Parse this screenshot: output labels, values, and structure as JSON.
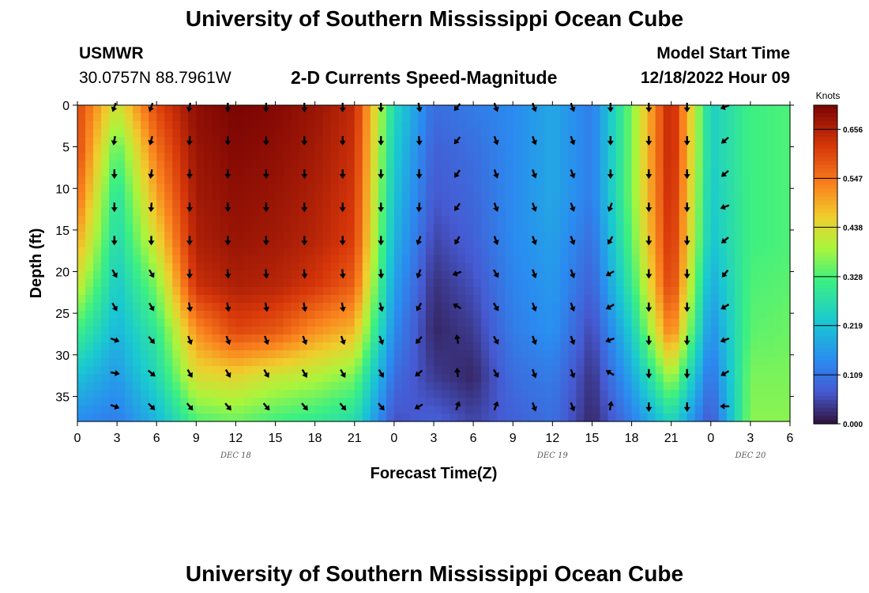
{
  "page_title": "University of Southern Mississippi Ocean Cube",
  "station": {
    "name": "USMWR",
    "coords": "30.0757N  88.7961W"
  },
  "plot_title": "2-D Currents Speed-Magnitude",
  "model_start": {
    "label": "Model Start Time",
    "value": "12/18/2022 Hour 09"
  },
  "footer_title": "University of Southern Mississippi Ocean Cube",
  "chart_data": {
    "type": "heatmap",
    "title": "2-D Currents Speed-Magnitude",
    "xlabel": "Forecast Time(Z)",
    "ylabel": "Depth (ft)",
    "x_ticks": [
      "0",
      "3",
      "6",
      "9",
      "12",
      "15",
      "18",
      "21",
      "0",
      "3",
      "6",
      "9",
      "12",
      "15",
      "18",
      "21",
      "0",
      "3",
      "6"
    ],
    "x_range_hours": [
      0,
      54
    ],
    "day_labels": [
      {
        "text": "DEC 18",
        "hour": 12
      },
      {
        "text": "DEC 19",
        "hour": 36
      },
      {
        "text": "DEC 20",
        "hour": 51
      }
    ],
    "y_ticks": [
      "0",
      "5",
      "10",
      "15",
      "20",
      "25",
      "30",
      "35"
    ],
    "ylim": [
      0,
      38
    ],
    "colorbar": {
      "unit_label": "Knots",
      "ticks": [
        "0.656",
        "0.547",
        "0.438",
        "0.328",
        "0.219",
        "0.109",
        "0.000"
      ],
      "min": 0,
      "max": 0.71
    },
    "speed_profiles": [
      {
        "hour": 0,
        "speeds": [
          0.6,
          0.6,
          0.56,
          0.5,
          0.42,
          0.32,
          0.22,
          0.14
        ]
      },
      {
        "hour": 3,
        "speeds": [
          0.42,
          0.33,
          0.28,
          0.26,
          0.23,
          0.2,
          0.16,
          0.12
        ]
      },
      {
        "hour": 6,
        "speeds": [
          0.6,
          0.55,
          0.5,
          0.44,
          0.36,
          0.3,
          0.26,
          0.2
        ]
      },
      {
        "hour": 9,
        "speeds": [
          0.69,
          0.68,
          0.67,
          0.66,
          0.63,
          0.52,
          0.44,
          0.33
        ]
      },
      {
        "hour": 12,
        "speeds": [
          0.71,
          0.7,
          0.69,
          0.68,
          0.66,
          0.6,
          0.45,
          0.35
        ]
      },
      {
        "hour": 15,
        "speeds": [
          0.7,
          0.69,
          0.68,
          0.67,
          0.65,
          0.58,
          0.42,
          0.32
        ]
      },
      {
        "hour": 18,
        "speeds": [
          0.68,
          0.67,
          0.66,
          0.65,
          0.62,
          0.52,
          0.4,
          0.3
        ]
      },
      {
        "hour": 21,
        "speeds": [
          0.64,
          0.63,
          0.62,
          0.61,
          0.57,
          0.48,
          0.36,
          0.27
        ]
      },
      {
        "hour": 24,
        "speeds": [
          0.26,
          0.24,
          0.22,
          0.2,
          0.17,
          0.14,
          0.1,
          0.06
        ]
      },
      {
        "hour": 27,
        "speeds": [
          0.1,
          0.08,
          0.07,
          0.05,
          0.03,
          0.02,
          0.04,
          0.08
        ]
      },
      {
        "hour": 30,
        "speeds": [
          0.12,
          0.1,
          0.09,
          0.08,
          0.06,
          0.04,
          0.02,
          0.05
        ]
      },
      {
        "hour": 33,
        "speeds": [
          0.14,
          0.14,
          0.14,
          0.14,
          0.13,
          0.12,
          0.1,
          0.08
        ]
      },
      {
        "hour": 36,
        "speeds": [
          0.18,
          0.18,
          0.18,
          0.17,
          0.16,
          0.15,
          0.12,
          0.1
        ]
      },
      {
        "hour": 39,
        "speeds": [
          0.12,
          0.12,
          0.12,
          0.1,
          0.08,
          0.05,
          0.03,
          0.02
        ]
      },
      {
        "hour": 42,
        "speeds": [
          0.36,
          0.36,
          0.36,
          0.34,
          0.3,
          0.24,
          0.18,
          0.12
        ]
      },
      {
        "hour": 45,
        "speeds": [
          0.66,
          0.66,
          0.65,
          0.64,
          0.62,
          0.55,
          0.4,
          0.26
        ]
      },
      {
        "hour": 48,
        "speeds": [
          0.24,
          0.24,
          0.23,
          0.22,
          0.18,
          0.14,
          0.1,
          0.06
        ]
      },
      {
        "hour": 51,
        "speeds": [
          0.32,
          0.32,
          0.32,
          0.32,
          0.33,
          0.34,
          0.36,
          0.37
        ]
      },
      {
        "hour": 54,
        "speeds": [
          0.33,
          0.33,
          0.33,
          0.33,
          0.34,
          0.35,
          0.36,
          0.37
        ]
      }
    ],
    "arrows": {
      "hours": [
        2.8,
        5.6,
        8.5,
        11.4,
        14.3,
        17.2,
        20.1,
        23,
        25.9,
        28.8,
        31.7,
        34.6,
        37.5,
        40.4,
        43.3,
        46.2,
        49.1
      ],
      "depths_ft": [
        0,
        4,
        8,
        12,
        16,
        20,
        24,
        28,
        32,
        36
      ],
      "direction_deg_by_column": [
        [
          200,
          190,
          180,
          180,
          180,
          150,
          150,
          110,
          100,
          110
        ],
        [
          200,
          195,
          190,
          185,
          180,
          150,
          150,
          140,
          130,
          135
        ],
        [
          190,
          185,
          180,
          180,
          180,
          180,
          170,
          160,
          150,
          140
        ],
        [
          180,
          180,
          180,
          180,
          180,
          175,
          170,
          160,
          150,
          140
        ],
        [
          180,
          180,
          180,
          180,
          180,
          175,
          170,
          160,
          150,
          140
        ],
        [
          180,
          180,
          180,
          180,
          180,
          175,
          170,
          160,
          150,
          140
        ],
        [
          180,
          180,
          180,
          180,
          180,
          175,
          170,
          160,
          150,
          140
        ],
        [
          180,
          180,
          180,
          180,
          180,
          175,
          165,
          160,
          150,
          140
        ],
        [
          170,
          175,
          180,
          185,
          200,
          200,
          210,
          220,
          230,
          240
        ],
        [
          220,
          220,
          215,
          215,
          210,
          250,
          300,
          350,
          355,
          20
        ],
        [
          160,
          160,
          160,
          160,
          160,
          150,
          150,
          150,
          150,
          20
        ],
        [
          160,
          160,
          160,
          160,
          160,
          160,
          160,
          160,
          160,
          160
        ],
        [
          160,
          160,
          160,
          160,
          160,
          160,
          160,
          160,
          160,
          160
        ],
        [
          180,
          180,
          180,
          200,
          210,
          240,
          240,
          250,
          300,
          10
        ],
        [
          180,
          180,
          180,
          180,
          180,
          180,
          180,
          180,
          180,
          180
        ],
        [
          180,
          180,
          180,
          180,
          180,
          180,
          180,
          180,
          180,
          180
        ],
        [
          250,
          230,
          230,
          250,
          230,
          220,
          240,
          250,
          240,
          270
        ]
      ]
    }
  }
}
